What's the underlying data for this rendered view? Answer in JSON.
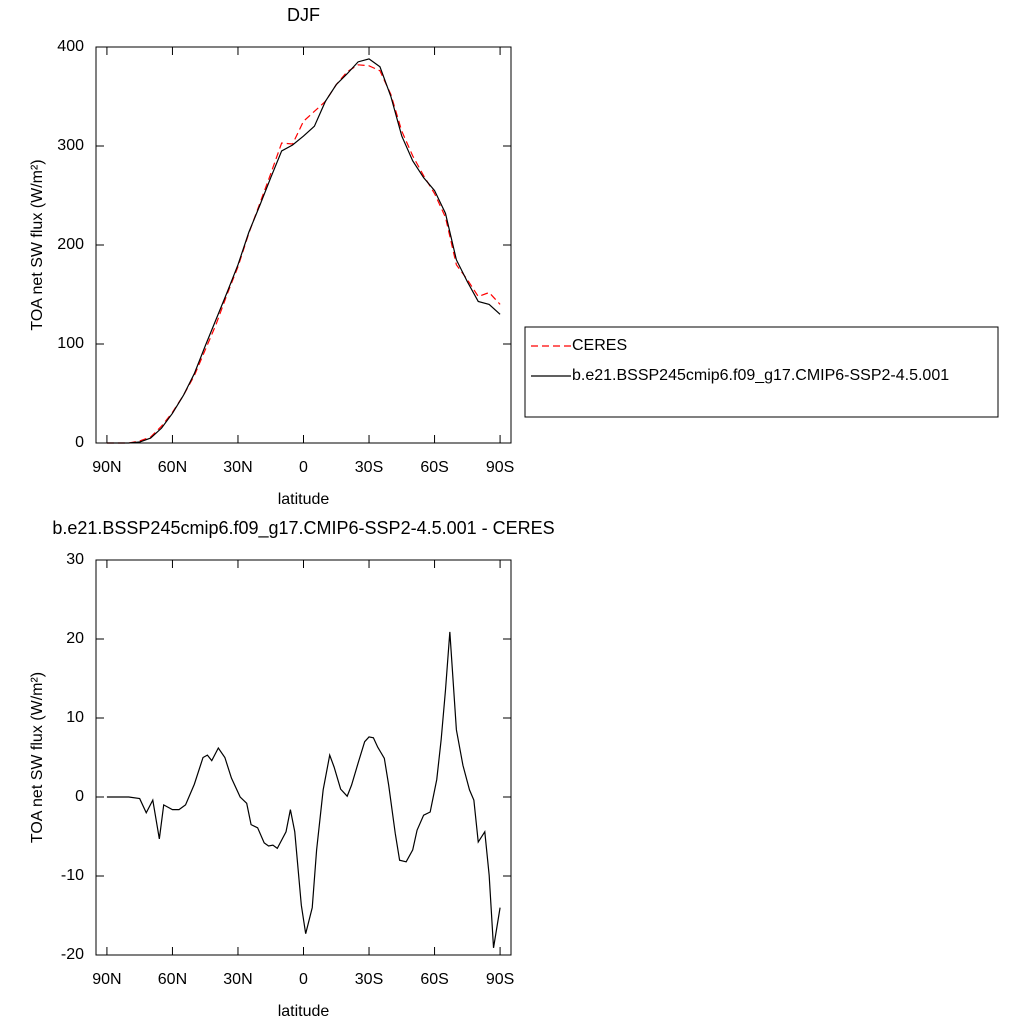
{
  "chart_data": [
    {
      "type": "line",
      "title": "DJF",
      "x_label": "latitude",
      "y_label": "TOA net SW flux (W/m²)",
      "x": [
        90,
        85,
        80,
        75,
        70,
        65,
        60,
        55,
        50,
        45,
        40,
        35,
        30,
        25,
        20,
        15,
        10,
        5,
        0,
        -5,
        -10,
        -15,
        -20,
        -25,
        -30,
        -35,
        -40,
        -45,
        -50,
        -55,
        -60,
        -65,
        -70,
        -75,
        -80,
        -85,
        -90
      ],
      "series": [
        {
          "name": "CERES",
          "color": "#ff0000",
          "dashed": true,
          "values": [
            0,
            0,
            0,
            2,
            6,
            17,
            31,
            48,
            68,
            94,
            120,
            150,
            178,
            212,
            242,
            272,
            303,
            302,
            325,
            335,
            345,
            362,
            375,
            382,
            381,
            376,
            352,
            315,
            290,
            270,
            252,
            228,
            180,
            165,
            148,
            152,
            140
          ]
        },
        {
          "name": "b.e21.BSSP245cmip6.f09_g17.CMIP6-SSP2-4.5.001",
          "color": "#000000",
          "dashed": false,
          "values": [
            0,
            0,
            0,
            1,
            5,
            15,
            30,
            48,
            70,
            98,
            125,
            152,
            180,
            213,
            240,
            268,
            295,
            301,
            310,
            320,
            345,
            362,
            373,
            385,
            388,
            380,
            350,
            310,
            285,
            268,
            255,
            232,
            185,
            163,
            143,
            140,
            130
          ]
        }
      ],
      "xlim": [
        95,
        -95
      ],
      "xticks": [
        {
          "value": 90,
          "label": "90N"
        },
        {
          "value": 60,
          "label": "60N"
        },
        {
          "value": 30,
          "label": "30N"
        },
        0,
        {
          "value": -30,
          "label": "30S"
        },
        {
          "value": -60,
          "label": "60S"
        },
        {
          "value": -90,
          "label": "90S"
        }
      ],
      "ylim": [
        0,
        400
      ],
      "yticks": [
        0,
        100,
        200,
        300,
        400
      ],
      "legend": "right"
    },
    {
      "type": "line",
      "title": "b.e21.BSSP245cmip6.f09_g17.CMIP6-SSP2-4.5.001 - CERES",
      "x_label": "latitude",
      "y_label": "TOA net SW flux (W/m²)",
      "x": [
        90,
        80,
        75,
        72,
        69,
        66,
        64,
        60,
        57,
        54,
        50,
        46,
        44,
        42,
        39,
        36,
        33,
        29,
        26,
        24,
        21,
        18,
        16,
        14,
        12,
        8,
        6,
        4,
        1,
        -1,
        -4,
        -6,
        -9,
        -12,
        -14,
        -17,
        -20,
        -22,
        -25,
        -28,
        -30,
        -32,
        -34,
        -37,
        -39,
        -42,
        -44,
        -47,
        -50,
        -52,
        -55,
        -58,
        -61,
        -63,
        -65,
        -67,
        -70,
        -73,
        -76,
        -78,
        -80,
        -83,
        -85,
        -87,
        -90
      ],
      "series": [
        {
          "color": "#000000",
          "dashed": false,
          "values": [
            0,
            0,
            -0.2,
            -2,
            -0.4,
            -5.3,
            -1,
            -1.6,
            -1.6,
            -1,
            1.6,
            5,
            5.3,
            4.6,
            6.2,
            5,
            2.4,
            0,
            -0.8,
            -3.5,
            -3.9,
            -5.8,
            -6.2,
            -6.1,
            -6.5,
            -4.4,
            -1.6,
            -4.4,
            -13.7,
            -17.3,
            -14,
            -6.7,
            0.9,
            5.3,
            3.8,
            1,
            0.1,
            1.5,
            4.3,
            7,
            7.6,
            7.5,
            6.3,
            4.9,
            1.5,
            -4.6,
            -8,
            -8.2,
            -6.7,
            -4.2,
            -2.3,
            -1.9,
            2.2,
            7.2,
            13.5,
            20.9,
            8.5,
            4,
            0.9,
            -0.4,
            -5.7,
            -4.4,
            -9.9,
            -19.1,
            -14
          ]
        }
      ],
      "xlim": [
        95,
        -95
      ],
      "xticks": [
        {
          "value": 90,
          "label": "90N"
        },
        {
          "value": 60,
          "label": "60N"
        },
        {
          "value": 30,
          "label": "30N"
        },
        0,
        {
          "value": -30,
          "label": "30S"
        },
        {
          "value": -60,
          "label": "60S"
        },
        {
          "value": -90,
          "label": "90S"
        }
      ],
      "ylim": [
        -20,
        30
      ],
      "yticks": [
        -20,
        -10,
        0,
        10,
        20,
        30
      ]
    }
  ]
}
